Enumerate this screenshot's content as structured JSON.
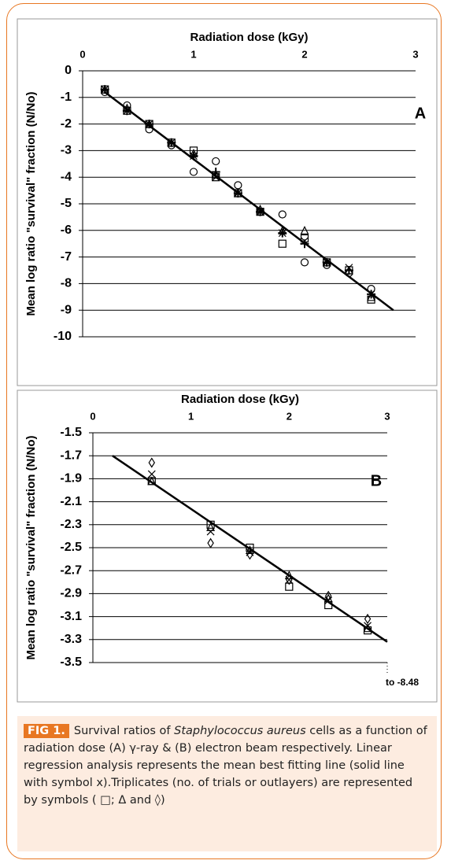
{
  "chart_data": [
    {
      "type": "scatter",
      "panel_label": "A",
      "xlabel": "Radiation dose (kGy)",
      "ylabel": "Mean log ratio \"survival\" fraction (N/No)",
      "xlim": [
        0,
        3
      ],
      "xticks": [
        0,
        1,
        2,
        3
      ],
      "ylim": [
        -10,
        0
      ],
      "yticks": [
        0,
        -1,
        -2,
        -3,
        -4,
        -5,
        -6,
        -7,
        -8,
        -9,
        -10
      ],
      "grid": true,
      "x": [
        0.2,
        0.4,
        0.6,
        0.8,
        1.0,
        1.2,
        1.4,
        1.6,
        1.8,
        2.0,
        2.2,
        2.4,
        2.6
      ],
      "series": [
        {
          "marker": "square",
          "color": "#000000",
          "values": [
            -0.7,
            -1.5,
            -2.0,
            -2.7,
            -3.0,
            -4.0,
            -4.6,
            -5.3,
            -6.5,
            -6.3,
            -7.2,
            -7.5,
            -8.6
          ]
        },
        {
          "marker": "triangle",
          "color": "#000000",
          "values": [
            -0.7,
            -1.4,
            -2.0,
            -2.7,
            -3.1,
            -3.9,
            -4.6,
            -5.2,
            -6.0,
            -6.0,
            -7.2,
            -7.5,
            -8.5
          ]
        },
        {
          "marker": "circle",
          "color": "#000000",
          "values": [
            -0.8,
            -1.3,
            -2.2,
            -2.8,
            -3.8,
            -3.4,
            -4.3,
            -5.3,
            -5.4,
            -7.2,
            -7.3,
            -7.6,
            -8.2
          ]
        },
        {
          "marker": "x",
          "color": "#000000",
          "values": [
            -0.7,
            -1.5,
            -2.0,
            -2.7,
            -3.2,
            -4.0,
            -4.6,
            -5.3,
            -6.1,
            -6.4,
            -7.2,
            -7.4,
            -8.4
          ]
        },
        {
          "marker": "plus",
          "color": "#000000",
          "values": [
            -0.7,
            -1.5,
            -2.0,
            -2.7,
            -3.2,
            -3.8,
            -4.6,
            -5.3,
            -6.1,
            -6.5,
            -7.2,
            -7.5,
            -8.4
          ]
        }
      ],
      "fit": {
        "x": [
          0.2,
          2.8
        ],
        "values": [
          -0.8,
          -9.0
        ]
      }
    },
    {
      "type": "scatter",
      "panel_label": "B",
      "xlabel": "Radiation dose (kGy)",
      "ylabel": "Mean log ratio \"survival\" fraction (N/No)",
      "xlim": [
        0,
        3
      ],
      "xticks": [
        0,
        1,
        2,
        3
      ],
      "ylim": [
        -3.5,
        -1.5
      ],
      "yticks": [
        -1.5,
        -1.7,
        -1.9,
        -2.1,
        -2.3,
        -2.5,
        -2.7,
        -2.9,
        -3.1,
        -3.3,
        -3.5
      ],
      "grid": true,
      "x": [
        0.6,
        1.2,
        1.6,
        2.0,
        2.4,
        2.8
      ],
      "series": [
        {
          "marker": "diamond",
          "color": "#000000",
          "values": [
            -1.76,
            -2.46,
            -2.56,
            -2.78,
            -2.92,
            -3.12
          ]
        },
        {
          "marker": "square",
          "color": "#000000",
          "values": [
            -1.92,
            -2.3,
            -2.5,
            -2.84,
            -3.0,
            -3.22
          ]
        },
        {
          "marker": "triangle",
          "color": "#000000",
          "values": [
            -1.92,
            -2.32,
            -2.52,
            -2.74,
            -2.94,
            -3.2
          ]
        },
        {
          "marker": "x",
          "color": "#000000",
          "values": [
            -1.86,
            -2.36,
            -2.54,
            -2.78,
            -2.96,
            -3.18
          ]
        }
      ],
      "fit": {
        "x": [
          0.2,
          3.0
        ],
        "values": [
          -1.7,
          -3.32
        ]
      },
      "annotation": "to -8.48"
    }
  ],
  "caption": {
    "badge": "FIG 1.",
    "parts": [
      "Survival ratios of ",
      "Staphylococcus aureus",
      " cells as a function of radiation dose (A) γ-ray & (B) electron beam respectively. Linear regression analysis represents the mean best fitting line (solid line with symbol x).Triplicates (no. of trials or outlayers) are represented by symbols ( □; Δ and ◊)"
    ]
  }
}
